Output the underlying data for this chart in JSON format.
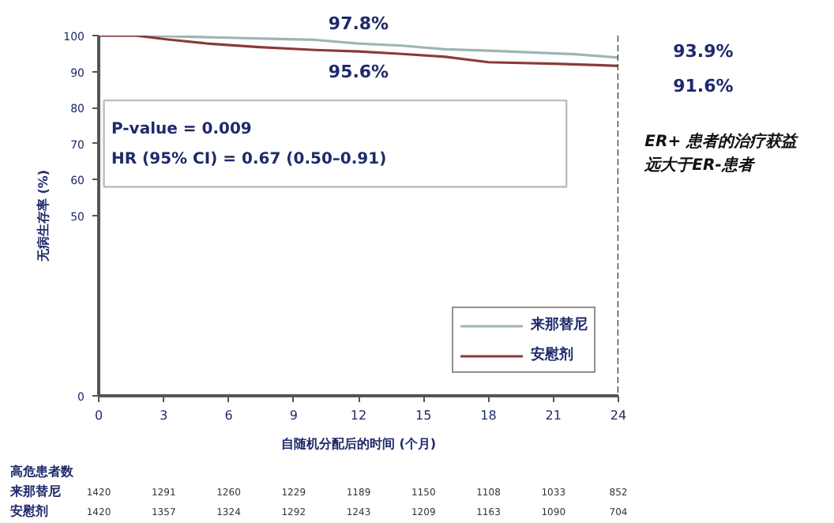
{
  "chart_data": {
    "type": "line",
    "ylabel": "无病生存率 (%)",
    "xlabel": "自随机分配后的时间 (个月)",
    "xlim": [
      0,
      24
    ],
    "xticks": [
      0,
      3,
      6,
      9,
      12,
      15,
      18,
      21,
      24
    ],
    "ylim": [
      0,
      100
    ],
    "yticks": [
      0,
      50,
      60,
      70,
      80,
      90,
      100
    ],
    "grid": false,
    "legend": "bottom right",
    "marker": "none",
    "line_style": "solid",
    "series": [
      {
        "name": "来那替尼",
        "color": "#9fb4b4",
        "x": [
          0,
          2,
          4,
          6,
          8,
          10,
          12,
          14,
          16,
          18,
          20,
          22,
          24
        ],
        "values": [
          100,
          100,
          99.7,
          99.4,
          99.1,
          98.8,
          97.8,
          97.2,
          96.2,
          95.8,
          95.3,
          94.8,
          93.9
        ]
      },
      {
        "name": "安慰剂",
        "color": "#8b3a3a",
        "x": [
          0,
          1.7,
          3.2,
          5,
          7.4,
          10,
          12,
          14,
          16,
          18,
          21,
          24
        ],
        "values": [
          100,
          100,
          98.9,
          97.8,
          96.8,
          96.0,
          95.6,
          94.9,
          94.1,
          92.6,
          92.2,
          91.6
        ]
      }
    ],
    "ref_lines": [
      {
        "axis": "x",
        "value": 24,
        "label": null,
        "color": "#333333",
        "line_style": "dashed"
      }
    ],
    "annotations": [
      "97.8%",
      {
        "text": "95.6%",
        "x": 12,
        "y": 95.6
      },
      "93.9%",
      "91.6%",
      "P-value = 0.009",
      "HR (95% CI) = 0.67 (0.50–0.91)",
      "ER+ 患者的治疗获益",
      "远大于ER-患者",
      "高危患者数",
      "来那替尼",
      "安慰剂",
      "1420",
      "1291",
      "1260",
      "1229",
      "1189",
      "1150",
      "1108",
      "1033",
      "852",
      "1420",
      "1357",
      "1324",
      "1292",
      "1243",
      "1209",
      "1163",
      "1090",
      "704"
    ]
  }
}
